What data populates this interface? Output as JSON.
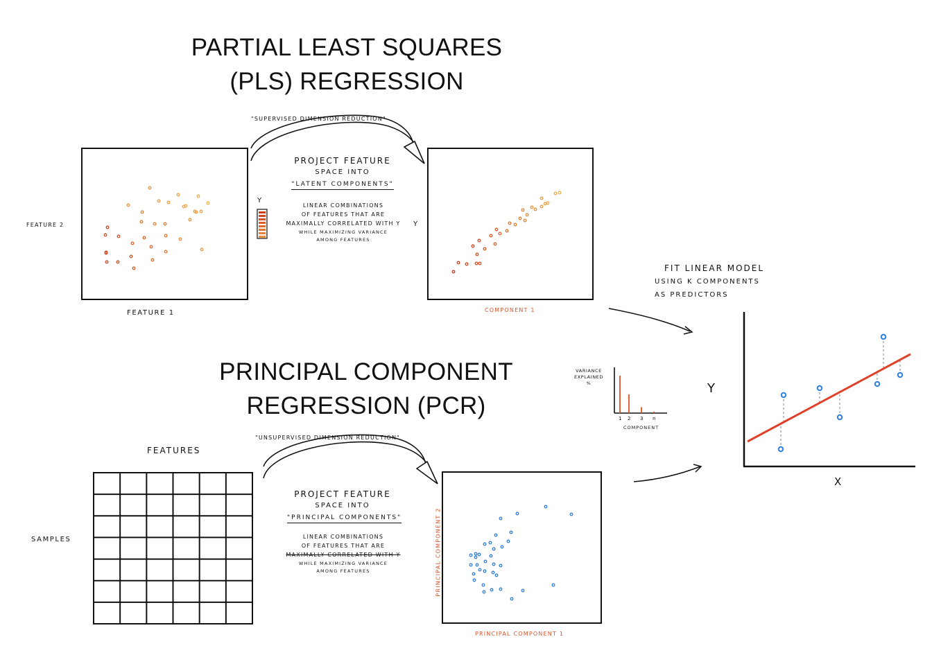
{
  "pls": {
    "title_line1": "PARTIAL LEAST SQUARES",
    "title_line2": "(PLS) REGRESSION",
    "tagline": "\"SUPERVISED DIMENSION REDUCTION\"",
    "project_line1": "PROJECT FEATURE",
    "project_line2": "SPACE INTO",
    "project_line3": "\"LATENT COMPONENTS\"",
    "desc_line1": "LINEAR COMBINATIONS",
    "desc_line2": "OF FEATURES THAT ARE",
    "desc_line3": "MAXIMALLY CORRELATED WITH Y",
    "desc_line4": "WHILE MAXIMIZING VARIANCE",
    "desc_line5": "AMONG FEATURES",
    "y_bar_label": "Y",
    "y_label": "Y",
    "feature1_label": "FEATURE 1",
    "feature2_label": "FEATURE 2",
    "component_label": "COMPONENT 1",
    "color_low": "#d13a1c",
    "color_high": "#f3b04a"
  },
  "pcr": {
    "title_line1": "PRINCIPAL COMPONENT",
    "title_line2": "REGRESSION (PCR)",
    "tagline": "\"UNSUPERVISED DIMENSION REDUCTION\"",
    "project_line1": "PROJECT FEATURE",
    "project_line2": "SPACE INTO",
    "project_line3": "\"PRINCIPAL COMPONENTS\"",
    "desc_line1": "LINEAR COMBINATIONS",
    "desc_line2": "OF FEATURES THAT ARE",
    "desc_line3": "MAXIMALLY CORRELATED WITH Y",
    "desc_line4": "WHILE MAXIMIZING VARIANCE",
    "desc_line5": "AMONG FEATURES",
    "features_label": "FEATURES",
    "samples_label": "SAMPLES",
    "pc1_label": "PRINCIPAL COMPONENT 1",
    "pc2_label": "PRINCIPAL COMPONENT 2",
    "grid_rows": 7,
    "grid_cols": 6,
    "point_color": "#2f7fe0"
  },
  "variance": {
    "ylabel_line1": "VARIANCE",
    "ylabel_line2": "EXPLAINED",
    "ylabel_line3": "%",
    "xlabel": "COMPONENT",
    "ticks": [
      "1",
      "2",
      "3",
      "n"
    ],
    "bar_fractions": [
      1.0,
      0.5,
      0.16,
      0.04
    ],
    "bar_color": "#e0521f"
  },
  "fit": {
    "line1": "FIT LINEAR MODEL",
    "line2": "USING K COMPONENTS",
    "line3": "AS PREDICTORS",
    "xlabel": "X",
    "ylabel": "Y",
    "line_color": "#e0402a",
    "point_color": "#2f7fe0"
  }
}
